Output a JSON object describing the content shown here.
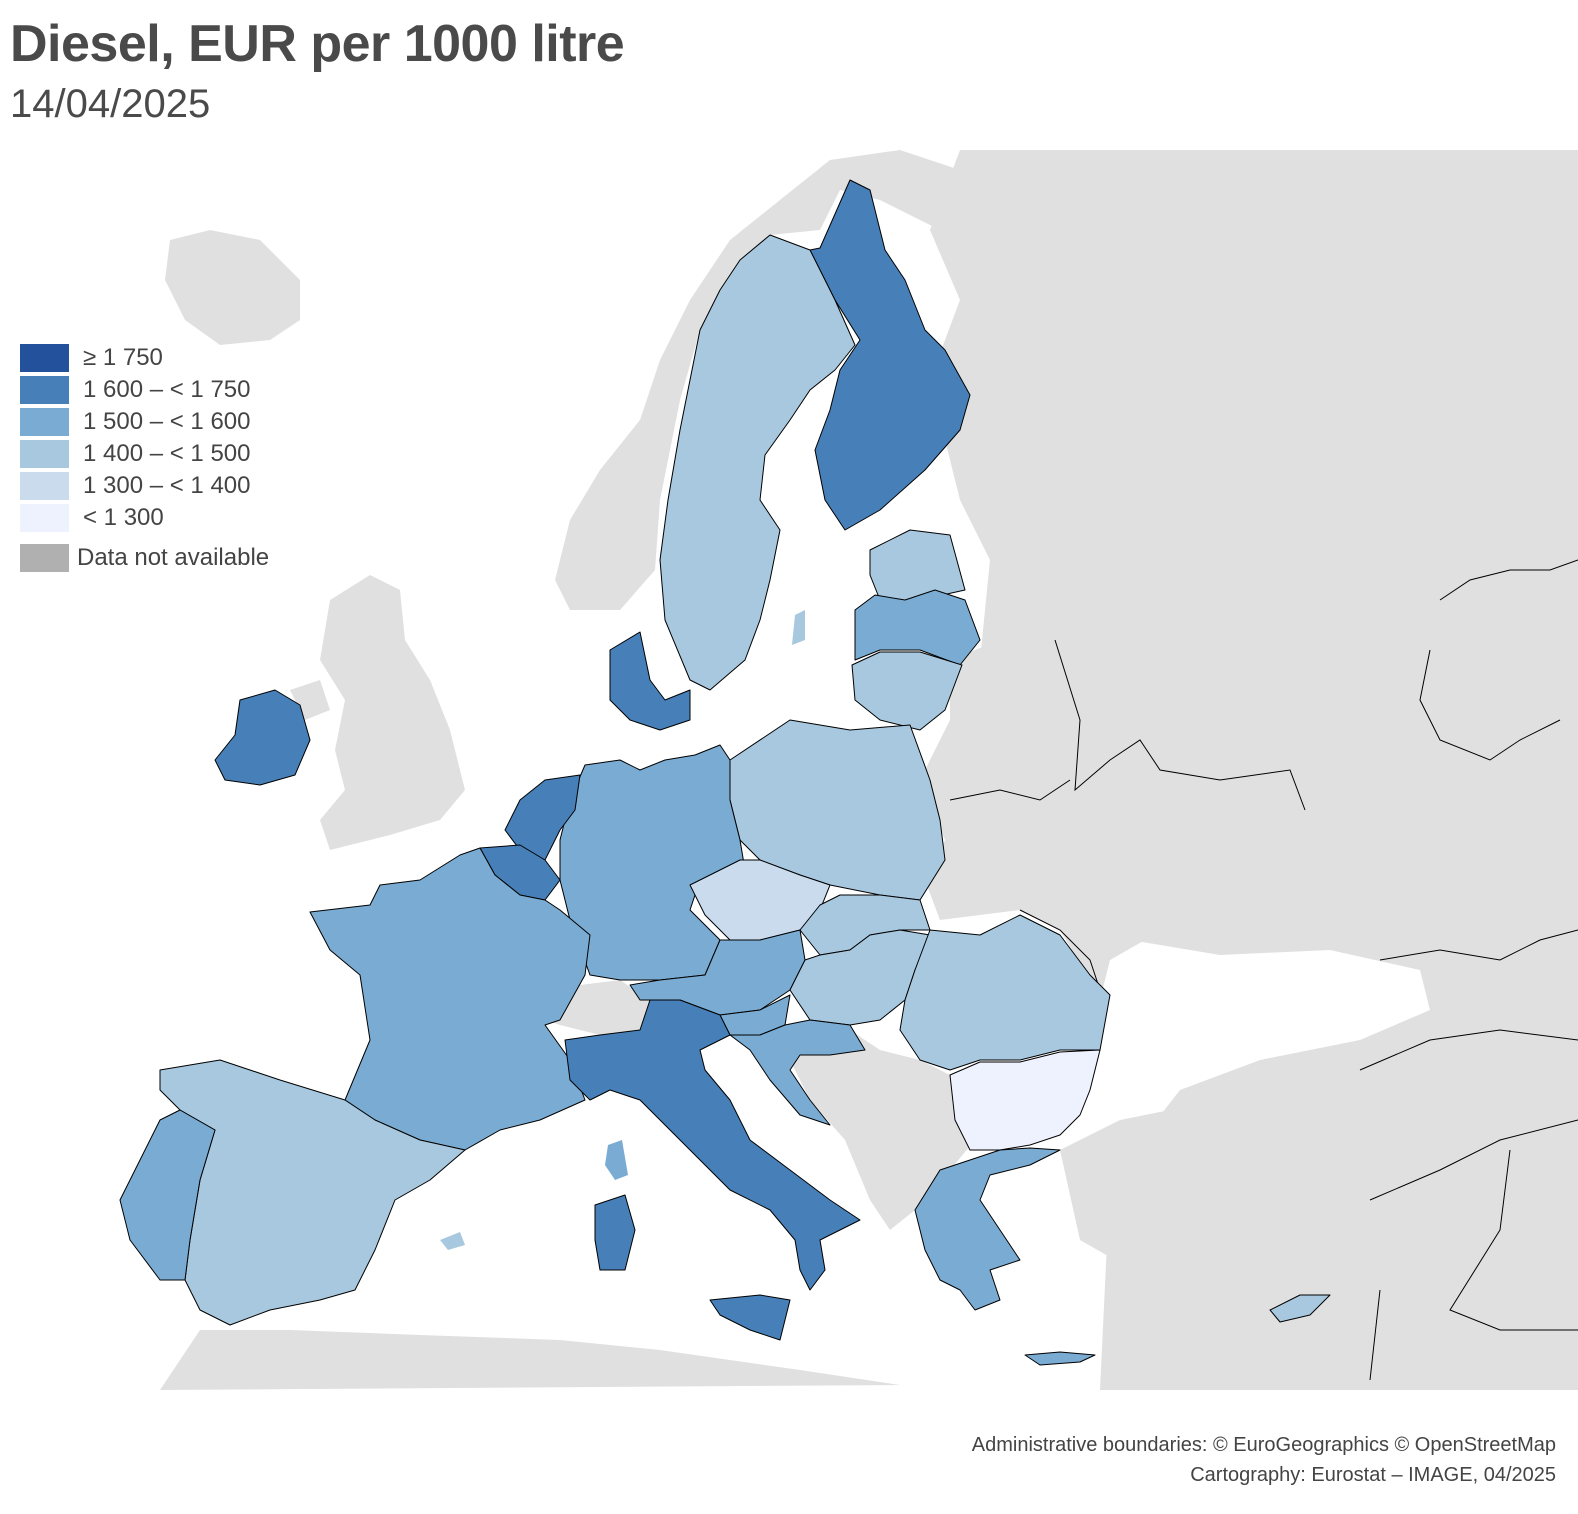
{
  "title": "Diesel, EUR per 1000 litre",
  "subtitle": "14/04/2025",
  "legend": [
    {
      "label": "≥ 1 750",
      "color": "#23519b"
    },
    {
      "label": "1 600 – < 1 750",
      "color": "#4780b9"
    },
    {
      "label": "1 500 – < 1 600",
      "color": "#7aabd2"
    },
    {
      "label": "1 400 – < 1 500",
      "color": "#a7c8df"
    },
    {
      "label": "1 300 – < 1 400",
      "color": "#c9dbed"
    },
    {
      "label": "< 1 300",
      "color": "#eef2fe"
    }
  ],
  "legend_na": {
    "label": "Data not available",
    "color": "#b0b0b0"
  },
  "map_colors": {
    "background_land": "#e0e0e0",
    "sea": "#ffffff",
    "border": "#000000"
  },
  "country_classes": {
    "finland": "1 600 – < 1 750",
    "ireland": "1 600 – < 1 750",
    "netherlands": "1 600 – < 1 750",
    "belgium": "1 600 – < 1 750",
    "denmark": "1 600 – < 1 750",
    "italy": "1 600 – < 1 750",
    "france": "1 500 – < 1 600",
    "germany": "1 500 – < 1 600",
    "portugal": "1 500 – < 1 600",
    "latvia": "1 500 – < 1 600",
    "austria": "1 500 – < 1 600",
    "slovenia": "1 500 – < 1 600",
    "croatia": "1 500 – < 1 600",
    "greece": "1 500 – < 1 600",
    "sweden": "1 400 – < 1 500",
    "spain": "1 400 – < 1 500",
    "poland": "1 400 – < 1 500",
    "estonia": "1 400 – < 1 500",
    "lithuania": "1 400 – < 1 500",
    "slovakia": "1 400 – < 1 500",
    "hungary": "1 400 – < 1 500",
    "romania": "1 400 – < 1 500",
    "cyprus": "1 400 – < 1 500",
    "czechia": "1 300 – < 1 400",
    "bulgaria": "< 1 300"
  },
  "credits": [
    "Administrative boundaries: © EuroGeographics © OpenStreetMap",
    "Cartography: Eurostat – IMAGE, 04/2025"
  ]
}
